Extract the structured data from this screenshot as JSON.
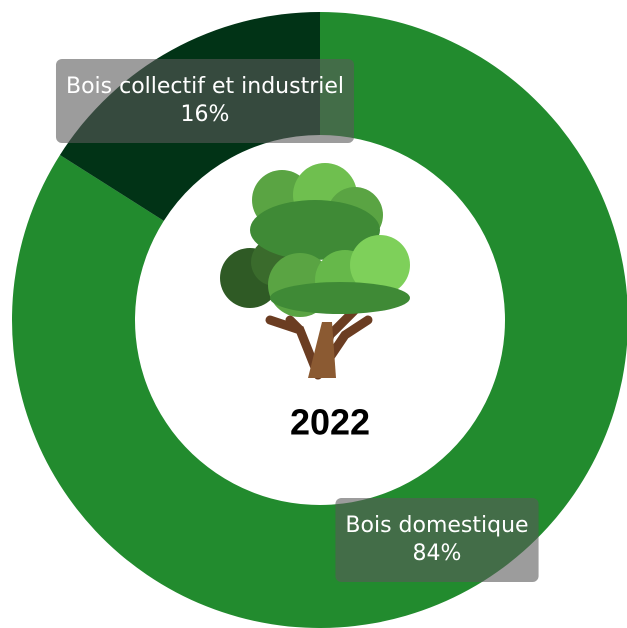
{
  "chart_data": {
    "type": "donut",
    "title": "2022",
    "categories": [
      "Bois domestique",
      "Bois collectif et industriel"
    ],
    "values": [
      84,
      16
    ],
    "value_labels": [
      "84%",
      "16%"
    ],
    "colors": [
      "#228b2e",
      "#013316"
    ]
  }
}
